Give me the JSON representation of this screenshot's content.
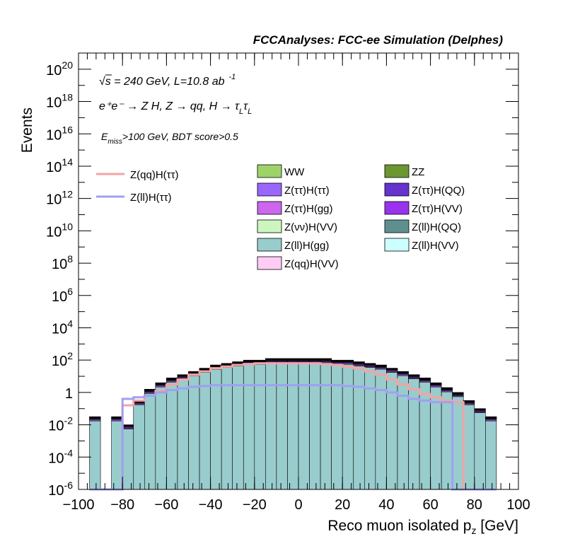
{
  "chart_data": {
    "type": "bar",
    "title": "FCCAnalyses: FCC-ee Simulation (Delphes)",
    "xlabel": "Reco muon isolated p",
    "xlabel_sub": "z",
    "xlabel_unit": " [GeV]",
    "ylabel": "Events",
    "xlim": [
      -100,
      100
    ],
    "ylim_log10": [
      -6,
      21
    ],
    "yscale": "log",
    "x_ticks": [
      "−100",
      "−80",
      "−60",
      "−40",
      "−20",
      "0",
      "20",
      "40",
      "60",
      "80",
      "100"
    ],
    "y_ticks": [
      {
        "base": "10",
        "exp": "20",
        "v": 20
      },
      {
        "base": "10",
        "exp": "18",
        "v": 18
      },
      {
        "base": "10",
        "exp": "16",
        "v": 16
      },
      {
        "base": "10",
        "exp": "14",
        "v": 14
      },
      {
        "base": "10",
        "exp": "12",
        "v": 12
      },
      {
        "base": "10",
        "exp": "10",
        "v": 10
      },
      {
        "base": "10",
        "exp": "8",
        "v": 8
      },
      {
        "base": "10",
        "exp": "6",
        "v": 6
      },
      {
        "base": "10",
        "exp": "4",
        "v": 4
      },
      {
        "base": "10",
        "exp": "2",
        "v": 2
      },
      {
        "base": "1",
        "exp": "",
        "v": 0
      },
      {
        "base": "10",
        "exp": "-2",
        "v": -2
      },
      {
        "base": "10",
        "exp": "-4",
        "v": -4
      },
      {
        "base": "10",
        "exp": "-6",
        "v": -6
      }
    ],
    "annotations": {
      "line1_sqrt": "√",
      "line1": "s = 240 GeV, L=10.8 ab",
      "line1_sup": "-1",
      "line2": "e⁺e⁻ → Z H, Z → qq, H → τ",
      "line2_sub1": "L",
      "line2_tau2": "τ",
      "line2_sub2": "L",
      "line3_E": "E",
      "line3_sub": "miss",
      "line3": ">100 GeV, BDT score>0.5"
    },
    "legend_lines": [
      {
        "label": "Z(qq)H(ττ)",
        "color": "#f4a3a3"
      },
      {
        "label": "Z(ll)H(ττ)",
        "color": "#a0a0f0"
      }
    ],
    "legend_fills": [
      {
        "label": "WW",
        "color": "#9ed36a"
      },
      {
        "label": "ZZ",
        "color": "#6b9630"
      },
      {
        "label": "Z(ττ)H(ττ)",
        "color": "#9966ff"
      },
      {
        "label": "Z(ττ)H(QQ)",
        "color": "#6633cc"
      },
      {
        "label": "Z(ττ)H(gg)",
        "color": "#cc66ee"
      },
      {
        "label": "Z(ττ)H(VV)",
        "color": "#9933ee"
      },
      {
        "label": "Z(νν)H(VV)",
        "color": "#ccf5c0"
      },
      {
        "label": "Z(ll)H(QQ)",
        "color": "#5f9090"
      },
      {
        "label": "Z(ll)H(gg)",
        "color": "#99cccc"
      },
      {
        "label": "Z(ll)H(VV)",
        "color": "#ccffff"
      },
      {
        "label": "Z(qq)H(VV)",
        "color": "#ffccf5"
      }
    ],
    "bin_width": 5,
    "bin_edges_start": -95,
    "stack_top_log10": [
      -1.5,
      -6,
      -1.5,
      -2,
      -0.5,
      0.2,
      0.6,
      0.9,
      1.1,
      1.3,
      1.5,
      1.7,
      1.8,
      1.9,
      2.0,
      2.0,
      2.1,
      2.1,
      2.1,
      2.1,
      2.1,
      2.1,
      2.0,
      2.0,
      1.9,
      1.8,
      1.7,
      1.5,
      1.3,
      1.1,
      0.9,
      0.6,
      0.3,
      0.0,
      -0.5,
      -1.0,
      -1.5
    ],
    "signal_qq_log10": [
      -6,
      -6,
      -6,
      -0.8,
      -0.5,
      -0.2,
      0.1,
      0.5,
      0.8,
      1.1,
      1.3,
      1.5,
      1.6,
      1.7,
      1.75,
      1.8,
      1.8,
      1.8,
      1.8,
      1.8,
      1.8,
      1.75,
      1.7,
      1.6,
      1.5,
      1.3,
      1.1,
      0.8,
      0.5,
      0.2,
      -0.1,
      -0.3,
      -0.5,
      -0.6,
      -6,
      -6,
      -6
    ],
    "signal_ll_log10": [
      -6,
      -6,
      -6,
      -0.4,
      -0.3,
      -0.2,
      0.0,
      0.15,
      0.25,
      0.35,
      0.4,
      0.45,
      0.45,
      0.45,
      0.45,
      0.45,
      0.45,
      0.45,
      0.45,
      0.45,
      0.45,
      0.45,
      0.45,
      0.4,
      0.35,
      0.25,
      0.15,
      0.0,
      -0.2,
      -0.4,
      -0.5,
      -0.6,
      -0.6,
      -6,
      -6,
      -6,
      -6
    ],
    "component_fractions": [
      {
        "label": "Z(ll)H(gg)",
        "color": "#99cccc",
        "f": 0.55
      },
      {
        "label": "Z(ττ)H(ττ)",
        "color": "#9966ff",
        "f": 0.08
      },
      {
        "label": "Z(ττ)H(gg)",
        "color": "#cc66ee",
        "f": 0.07
      },
      {
        "label": "Z(ττ)H(VV)",
        "color": "#9933ee",
        "f": 0.07
      },
      {
        "label": "Z(ττ)H(QQ)",
        "color": "#6633cc",
        "f": 0.05
      },
      {
        "label": "Z(νν)H(VV)",
        "color": "#ccf5c0",
        "f": 0.05
      },
      {
        "label": "Z(qq)H(VV)",
        "color": "#ffccf5",
        "f": 0.03
      },
      {
        "label": "Z(ll)H(VV)",
        "color": "#ccffff",
        "f": 0.03
      },
      {
        "label": "Z(ll)H(QQ)",
        "color": "#5f9090",
        "f": 0.03
      },
      {
        "label": "WW",
        "color": "#9ed36a",
        "f": 0.02
      },
      {
        "label": "ZZ",
        "color": "#6b9630",
        "f": 0.02
      }
    ]
  }
}
